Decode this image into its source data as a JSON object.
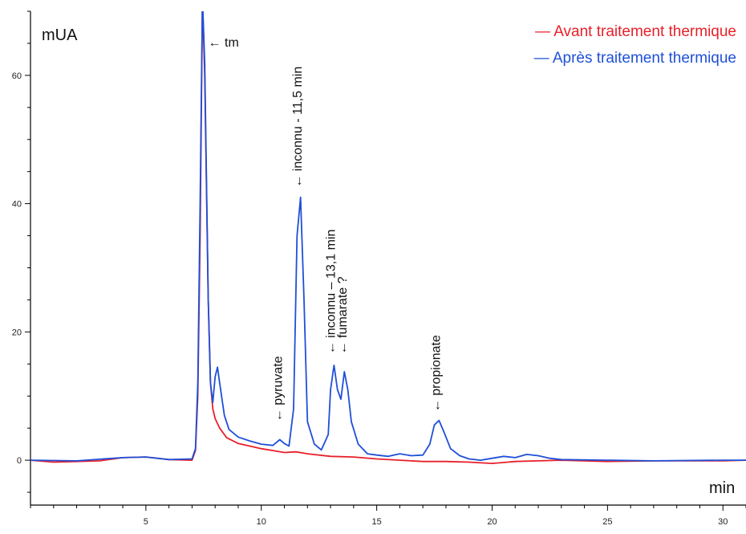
{
  "chart_data": {
    "type": "line",
    "ylabel": "mUA",
    "xlabel": "min",
    "xlim": [
      0,
      31
    ],
    "ylim": [
      -7,
      70
    ],
    "xticks": [
      5,
      10,
      15,
      20,
      25,
      30
    ],
    "yticks": [
      0,
      20,
      40,
      60
    ],
    "grid": false,
    "legend_position": "top-right",
    "series": [
      {
        "name": "Avant traitement thermique",
        "color": "#e8202a",
        "x": [
          0,
          1,
          2,
          3,
          4,
          5,
          6,
          7.0,
          7.15,
          7.25,
          7.35,
          7.45,
          7.55,
          7.7,
          7.8,
          7.9,
          8.0,
          8.2,
          8.5,
          9,
          10,
          11,
          11.5,
          12,
          13,
          14,
          15,
          16,
          17,
          18,
          19,
          20,
          21,
          22,
          23,
          25,
          27,
          30,
          31
        ],
        "y": [
          0,
          -0.3,
          -0.2,
          -0.1,
          0.4,
          0.5,
          0.1,
          0,
          1.5,
          10,
          35,
          72,
          60,
          25,
          12,
          8,
          6.5,
          5,
          3.5,
          2.6,
          1.8,
          1.2,
          1.3,
          1.0,
          0.6,
          0.5,
          0.2,
          0,
          -0.2,
          -0.2,
          -0.3,
          -0.5,
          -0.2,
          -0.1,
          0,
          -0.2,
          -0.1,
          -0.1,
          0
        ]
      },
      {
        "name": "Après traitement thermique",
        "color": "#1f4fd8",
        "x": [
          0,
          2,
          4,
          5,
          6,
          7.0,
          7.15,
          7.25,
          7.35,
          7.45,
          7.55,
          7.7,
          7.8,
          7.9,
          8.0,
          8.1,
          8.2,
          8.4,
          8.6,
          9.0,
          9.5,
          10.0,
          10.5,
          10.8,
          11.0,
          11.2,
          11.4,
          11.55,
          11.7,
          11.85,
          12.0,
          12.3,
          12.6,
          12.9,
          13.0,
          13.15,
          13.3,
          13.45,
          13.6,
          13.75,
          13.9,
          14.2,
          14.6,
          15.0,
          15.5,
          16.0,
          16.5,
          17.0,
          17.3,
          17.5,
          17.7,
          17.9,
          18.2,
          18.6,
          19.0,
          19.5,
          20.0,
          20.5,
          21.0,
          21.5,
          22.0,
          22.5,
          23.0,
          25,
          27,
          30,
          31
        ],
        "y": [
          0,
          -0.1,
          0.4,
          0.5,
          0.1,
          0.2,
          1.8,
          12,
          40,
          72,
          62,
          25,
          12,
          9,
          13,
          14.5,
          12,
          7,
          4.8,
          3.6,
          3.0,
          2.5,
          2.3,
          3.2,
          2.6,
          2.2,
          8,
          35,
          41,
          25,
          6,
          2.5,
          1.6,
          4,
          11,
          14.8,
          11,
          9.5,
          13.8,
          11,
          6,
          2.5,
          1.0,
          0.8,
          0.6,
          1.0,
          0.7,
          0.8,
          2.5,
          5.5,
          6.2,
          4.5,
          1.8,
          0.7,
          0.2,
          0,
          0.3,
          0.6,
          0.4,
          0.9,
          0.7,
          0.3,
          0.1,
          0,
          -0.1,
          0,
          0
        ]
      }
    ],
    "annotations": [
      {
        "text": "← tm",
        "x": 7.7,
        "y": 67,
        "rotate": false
      },
      {
        "text": "← inconnu - 11,5 min",
        "x": 11.6,
        "y": 42.5,
        "rotate": true
      },
      {
        "text": "← pyruvate",
        "x": 10.75,
        "y": 6,
        "rotate": true
      },
      {
        "text": "← inconnu – 13,1 min",
        "x": 13.05,
        "y": 16.5,
        "rotate": true
      },
      {
        "text": "← fumarate ?",
        "x": 13.55,
        "y": 16.5,
        "rotate": true
      },
      {
        "text": "← propionate",
        "x": 17.6,
        "y": 7.5,
        "rotate": true
      }
    ]
  }
}
